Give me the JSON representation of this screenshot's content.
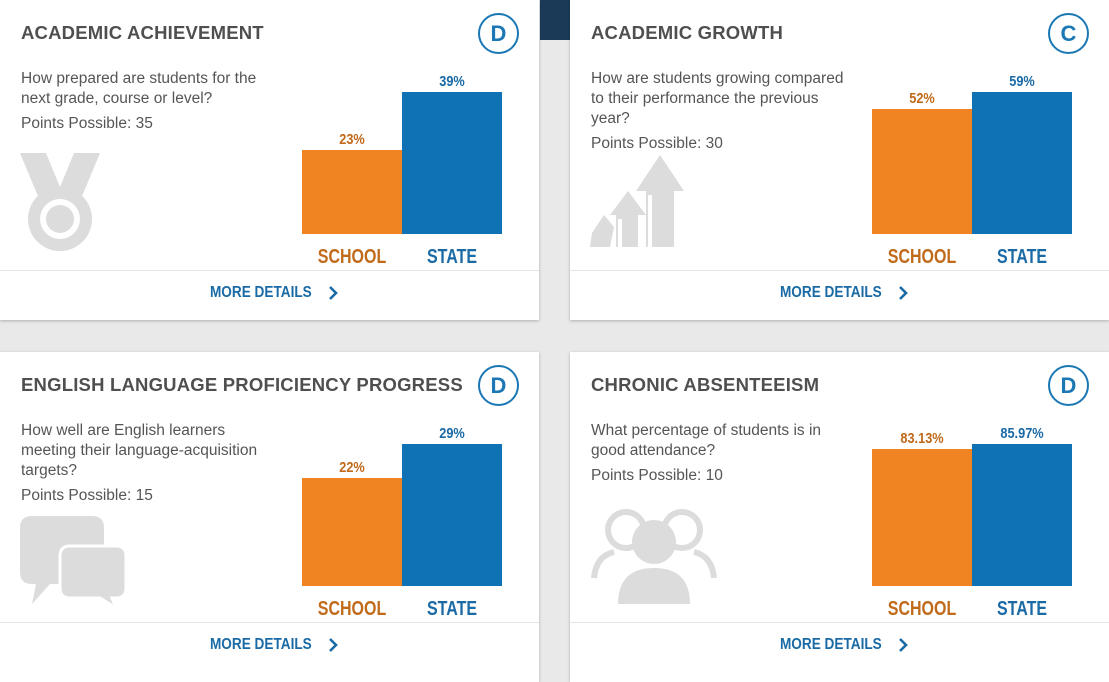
{
  "colors": {
    "school": "#f08423",
    "state": "#0e72b5",
    "accent": "#1b78b4"
  },
  "bar_label_school": "SCHOOL",
  "bar_label_state": "STATE",
  "more_details_label": "MORE DETAILS",
  "cards": [
    {
      "title": "ACADEMIC ACHIEVEMENT",
      "grade": "D",
      "description": "How prepared are students for the next grade, course or level?",
      "points": "Points Possible: 35",
      "icon": "medal-icon",
      "chart_data": {
        "type": "bar",
        "categories": [
          "SCHOOL",
          "STATE"
        ],
        "values": [
          23,
          39
        ],
        "labels": [
          "23%",
          "39%"
        ],
        "ylim": [
          0,
          39
        ]
      }
    },
    {
      "title": "ACADEMIC GROWTH",
      "grade": "C",
      "description": "How are students growing compared to their performance the previous year?",
      "points": "Points Possible: 30",
      "icon": "growth-arrows-icon",
      "chart_data": {
        "type": "bar",
        "categories": [
          "SCHOOL",
          "STATE"
        ],
        "values": [
          52,
          59
        ],
        "labels": [
          "52%",
          "59%"
        ],
        "ylim": [
          0,
          59
        ]
      }
    },
    {
      "title": "ENGLISH LANGUAGE PROFICIENCY PROGRESS",
      "grade": "D",
      "description": "How well are English learners meeting their language-acquisition targets?",
      "points": "Points Possible: 15",
      "icon": "speech-bubbles-icon",
      "chart_data": {
        "type": "bar",
        "categories": [
          "SCHOOL",
          "STATE"
        ],
        "values": [
          22,
          29
        ],
        "labels": [
          "22%",
          "29%"
        ],
        "ylim": [
          0,
          29
        ]
      }
    },
    {
      "title": "CHRONIC ABSENTEEISM",
      "grade": "D",
      "description": "What percentage of students is in good attendance?",
      "points": "Points Possible: 10",
      "icon": "people-icon",
      "chart_data": {
        "type": "bar",
        "categories": [
          "SCHOOL",
          "STATE"
        ],
        "values": [
          83.13,
          85.97
        ],
        "labels": [
          "83.13%",
          "85.97%"
        ],
        "ylim": [
          0,
          85.97
        ]
      }
    }
  ]
}
